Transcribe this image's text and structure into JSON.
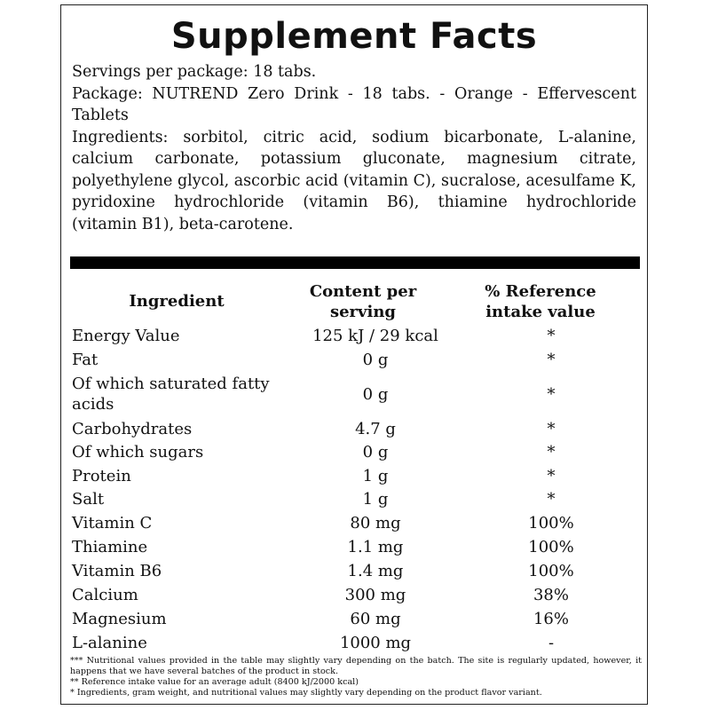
{
  "title": "Supplement Facts",
  "servings": "Servings per package: 18 tabs.",
  "package": "Package: NUTREND Zero Drink - 18 tabs. - Orange - Effervescent Tablets",
  "ingredients": "Ingredients: sorbitol, citric acid, sodium bicarbonate, L-alanine, calcium carbonate, potassium gluconate, magnesium citrate, polyethylene glycol, ascorbic acid (vitamin C), sucralose, acesulfame K, pyridoxine hydrochloride (vitamin B6), thiamine hydrochloride (vitamin B1), beta-carotene.",
  "table": {
    "headers": [
      "Ingredient",
      "Content per serving",
      "% Reference intake value"
    ],
    "rows": [
      {
        "name": "Energy Value",
        "content": "125 kJ / 29 kcal",
        "ref": "*"
      },
      {
        "name": "Fat",
        "content": "0 g",
        "ref": "*"
      },
      {
        "name": "Of which saturated fatty acids",
        "content": "0 g",
        "ref": "*"
      },
      {
        "name": "Carbohydrates",
        "content": "4.7 g",
        "ref": "*"
      },
      {
        "name": "Of which sugars",
        "content": "0 g",
        "ref": "*"
      },
      {
        "name": "Protein",
        "content": "1 g",
        "ref": "*"
      },
      {
        "name": "Salt",
        "content": "1 g",
        "ref": "*"
      },
      {
        "name": "Vitamin C",
        "content": "80 mg",
        "ref": "100%"
      },
      {
        "name": "Thiamine",
        "content": "1.1 mg",
        "ref": "100%"
      },
      {
        "name": "Vitamin B6",
        "content": "1.4 mg",
        "ref": "100%"
      },
      {
        "name": "Calcium",
        "content": "300 mg",
        "ref": "38%"
      },
      {
        "name": "Magnesium",
        "content": "60 mg",
        "ref": "16%"
      },
      {
        "name": "L-alanine",
        "content": "1000 mg",
        "ref": "-"
      }
    ]
  },
  "notes": [
    "*** Nutritional values provided in the table may slightly vary depending on the batch. The site is regularly updated, however, it happens that we have several batches of the product in stock.",
    "** Reference intake value for an average adult (8400 kJ/2000 kcal)",
    "* Ingredients, gram weight, and nutritional values may slightly vary depending on the product flavor variant."
  ]
}
